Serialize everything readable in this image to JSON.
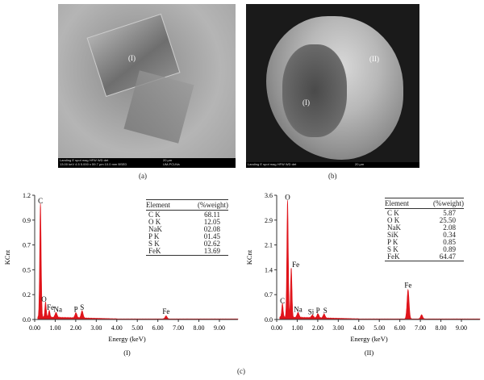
{
  "panel_a": {
    "caption": "(a)",
    "region_label": "(I)",
    "info_bar": {
      "line1": "Landing E spot  mag  HFW  WD  det",
      "line2": "13.00 keV  4.5  5.000 x 59.7 μm 10.0 mm BSED",
      "scale": "20 μm",
      "institution": "UM-PCUVa"
    }
  },
  "panel_b": {
    "caption": "(b)",
    "region_labels": [
      "(II)",
      "(I)"
    ],
    "info_bar": {
      "line1": "Landing E spot  mag  HFW  WD  det",
      "scale": "20 μm"
    }
  },
  "panel_c_caption": "(c)",
  "chart_data": [
    {
      "type": "line",
      "subtitle": "(I)",
      "xlabel": "Energy (keV)",
      "ylabel": "KCnt",
      "xlim": [
        0,
        9.9
      ],
      "ylim": [
        0,
        1.2
      ],
      "x_ticks": [
        "0.00",
        "1.00",
        "2.00",
        "3.00",
        "4.00",
        "5.00",
        "6.00",
        "7.00",
        "8.00",
        "9.00"
      ],
      "y_ticks": [
        "0.0",
        "0.2",
        "0.5",
        "0.7",
        "0.9",
        "1.2"
      ],
      "color": "#e0141b",
      "peaks": [
        {
          "label": "C",
          "energy": 0.28,
          "kcnt": 1.1
        },
        {
          "label": "O",
          "energy": 0.53,
          "kcnt": 0.15
        },
        {
          "label": "Fe",
          "energy": 0.71,
          "kcnt": 0.07
        },
        {
          "label": "Na",
          "energy": 1.04,
          "kcnt": 0.05
        },
        {
          "label": "P",
          "energy": 2.01,
          "kcnt": 0.05
        },
        {
          "label": "S",
          "energy": 2.31,
          "kcnt": 0.07
        },
        {
          "label": "Fe",
          "energy": 6.4,
          "kcnt": 0.03
        }
      ],
      "table": {
        "headers": [
          "Element",
          "(%weight)"
        ],
        "rows": [
          [
            "C K",
            "68.11"
          ],
          [
            "O K",
            "12.05"
          ],
          [
            "NaK",
            "02.08"
          ],
          [
            "P K",
            "01.45"
          ],
          [
            "S K",
            "02.62"
          ],
          [
            "FeK",
            "13.69"
          ]
        ]
      }
    },
    {
      "type": "line",
      "subtitle": "(II)",
      "xlabel": "Energy (keV)",
      "ylabel": "KCnt",
      "xlim": [
        0,
        9.9
      ],
      "ylim": [
        0,
        3.6
      ],
      "x_ticks": [
        "0.00",
        "1.00",
        "2.00",
        "3.00",
        "4.00",
        "5.00",
        "6.00",
        "7.00",
        "8.00",
        "9.00"
      ],
      "y_ticks": [
        "0.0",
        "0.7",
        "1.4",
        "2.1",
        "2.9",
        "3.6"
      ],
      "color": "#e0141b",
      "peaks": [
        {
          "label": "C",
          "energy": 0.28,
          "kcnt": 0.4
        },
        {
          "label": "O",
          "energy": 0.53,
          "kcnt": 3.4
        },
        {
          "label": "Fe",
          "energy": 0.71,
          "kcnt": 1.45
        },
        {
          "label": "Na",
          "energy": 1.04,
          "kcnt": 0.15
        },
        {
          "label": "Si",
          "energy": 1.74,
          "kcnt": 0.08
        },
        {
          "label": "P",
          "energy": 2.01,
          "kcnt": 0.12
        },
        {
          "label": "S",
          "energy": 2.31,
          "kcnt": 0.12
        },
        {
          "label": "Fe",
          "energy": 6.4,
          "kcnt": 0.85
        },
        {
          "label": "",
          "energy": 7.06,
          "kcnt": 0.12
        }
      ],
      "table": {
        "headers": [
          "Element",
          "(%weight)"
        ],
        "rows": [
          [
            "C K",
            "5.87"
          ],
          [
            "O K",
            "25.50"
          ],
          [
            "NaK",
            "2.08"
          ],
          [
            "SiK",
            "0.34"
          ],
          [
            "P K",
            "0.85"
          ],
          [
            "S K",
            "0.89"
          ],
          [
            "FeK",
            "64.47"
          ]
        ]
      }
    }
  ]
}
